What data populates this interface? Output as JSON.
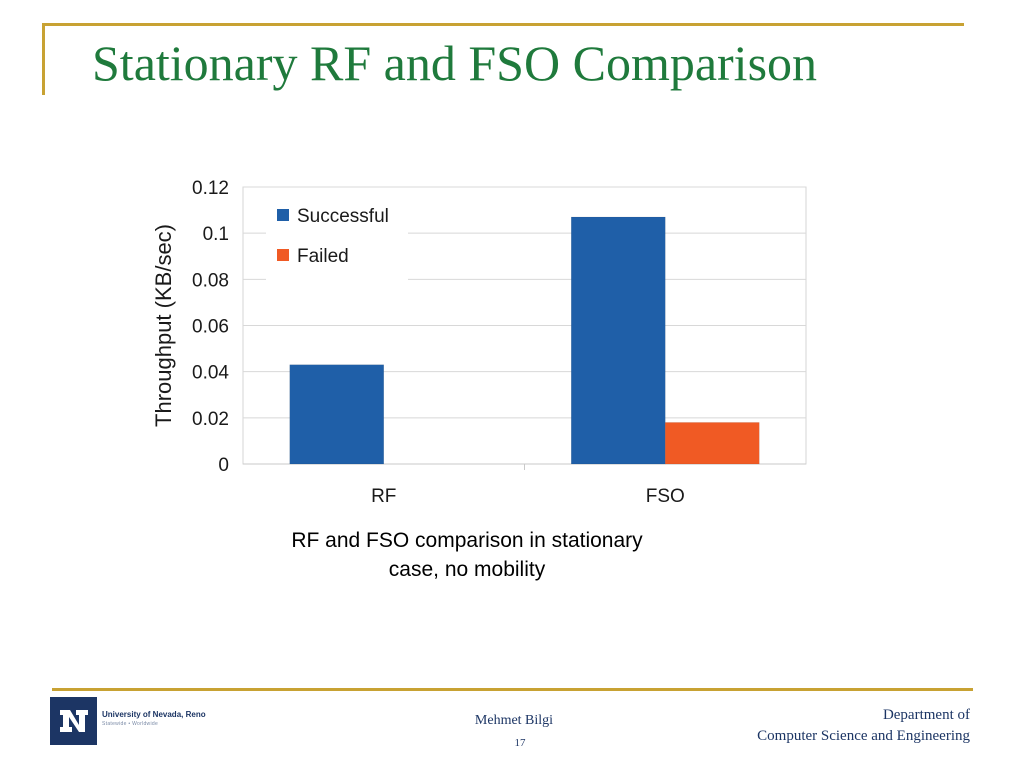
{
  "slide": {
    "title": "Stationary RF and FSO Comparison",
    "caption_line1": "RF and FSO comparison in stationary",
    "caption_line2": "case, no mobility"
  },
  "footer": {
    "logo_text": "University of Nevada, Reno",
    "logo_tagline": "Statewide • Worldwide",
    "author": "Mehmet Bilgi",
    "page_number": "17",
    "dept_line1": "Department of",
    "dept_line2": "Computer Science and Engineering"
  },
  "colors": {
    "title": "#1f7a3c",
    "accent_rule": "#c8a233",
    "footer_text": "#1c3564",
    "successful": "#1f5fa8",
    "failed": "#f05a24"
  },
  "icons": {
    "logo": "university-logo-icon"
  },
  "chart_data": {
    "type": "bar",
    "categories": [
      "RF",
      "FSO"
    ],
    "series": [
      {
        "name": "Successful",
        "values": [
          0.043,
          0.107
        ],
        "color": "#1f5fa8"
      },
      {
        "name": "Failed",
        "values": [
          0,
          0.018
        ],
        "color": "#f05a24"
      }
    ],
    "ylabel": "Throughput (KB/sec)",
    "xlabel": "",
    "ylim": [
      0,
      0.12
    ],
    "yticks": [
      "0",
      "0.02",
      "0.04",
      "0.06",
      "0.08",
      "0.1",
      "0.12"
    ],
    "grid": true,
    "legend": "top-left"
  }
}
